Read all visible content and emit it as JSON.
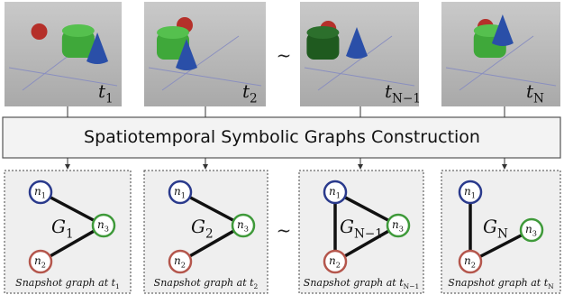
{
  "frames": [
    {
      "label": "t",
      "sub": "1"
    },
    {
      "label": "t",
      "sub": "2"
    },
    {
      "label": "t",
      "sub": "N−1"
    },
    {
      "label": "t",
      "sub": "N"
    }
  ],
  "separator": "~",
  "construction": {
    "title": "Spatiotemporal Symbolic Graphs Construction"
  },
  "graphs": [
    {
      "label": "G",
      "sub": "1",
      "nodes": [
        {
          "label": "n",
          "sub": "1"
        },
        {
          "label": "n",
          "sub": "2"
        },
        {
          "label": "n",
          "sub": "3"
        }
      ],
      "caption": {
        "text": "Snapshot graph at t",
        "sub": "1"
      }
    },
    {
      "label": "G",
      "sub": "2",
      "nodes": [
        {
          "label": "n",
          "sub": "1"
        },
        {
          "label": "n",
          "sub": "2"
        },
        {
          "label": "n",
          "sub": "3"
        }
      ],
      "caption": {
        "text": "Snapshot graph at t",
        "sub": "2"
      }
    },
    {
      "label": "G",
      "sub": "N−1",
      "nodes": [
        {
          "label": "n",
          "sub": "1"
        },
        {
          "label": "n",
          "sub": "2"
        },
        {
          "label": "n",
          "sub": "3"
        }
      ],
      "caption": {
        "text": "Snapshot graph at t",
        "sub": "N−1"
      }
    },
    {
      "label": "G",
      "sub": "N",
      "nodes": [
        {
          "label": "n",
          "sub": "1"
        },
        {
          "label": "n",
          "sub": "2"
        },
        {
          "label": "n",
          "sub": "3"
        }
      ],
      "caption": {
        "text": "Snapshot graph at t",
        "sub": "N"
      }
    }
  ]
}
